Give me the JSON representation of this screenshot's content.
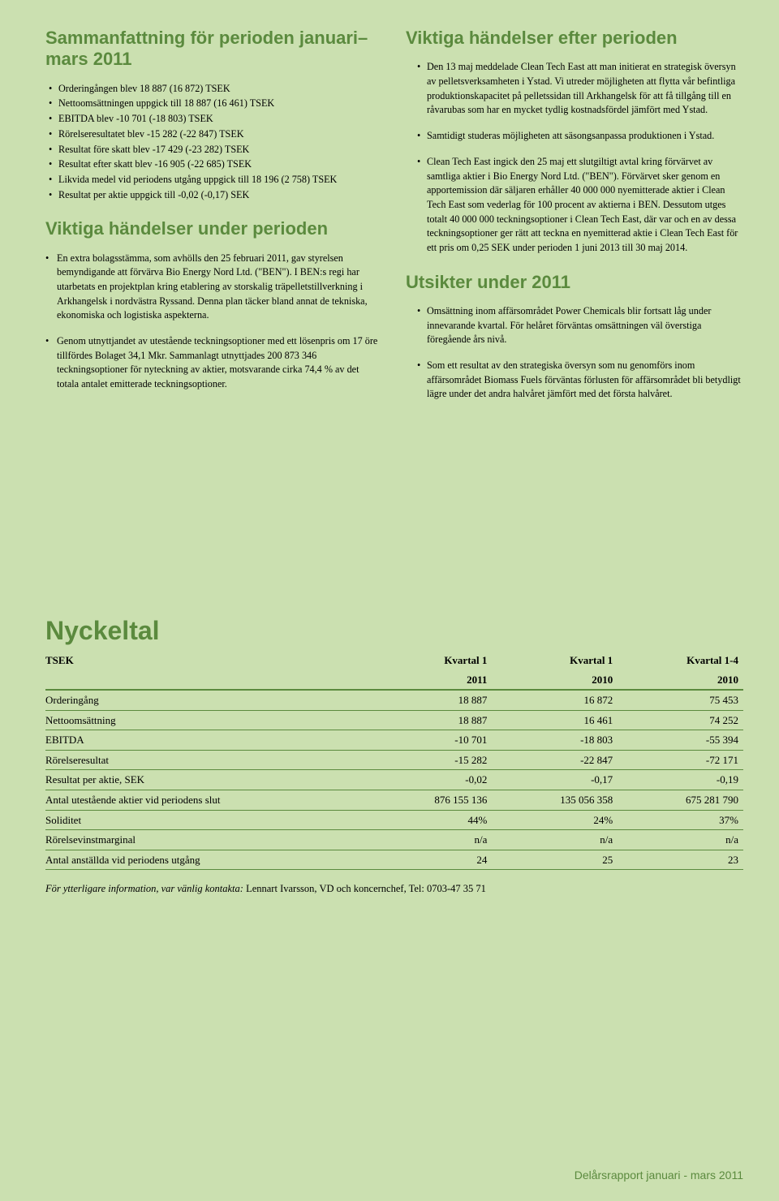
{
  "left": {
    "title1": "Sammanfattning för perioden januari–mars 2011",
    "summary": [
      "Orderingången blev 18 887 (16 872) TSEK",
      "Nettoomsättningen uppgick till 18 887 (16 461) TSEK",
      "EBITDA blev -10 701 (-18 803) TSEK",
      "Rörelseresultatet blev -15 282 (-22 847) TSEK",
      "Resultat före skatt blev -17 429 (-23 282) TSEK",
      "Resultat efter skatt blev -16 905 (-22 685) TSEK",
      "Likvida medel vid periodens utgång uppgick till 18 196 (2 758) TSEK",
      "Resultat per aktie uppgick till -0,02 (-0,17) SEK"
    ],
    "title2": "Viktiga händelser under perioden",
    "events": [
      "En extra bolagsstämma, som avhölls den 25 februari 2011, gav styrelsen bemyndigande att förvärva Bio Energy Nord Ltd. (\"BEN\"). I BEN:s regi har utarbetats en projektplan kring etablering av storskalig träpelletstillverkning i Arkhangelsk i nordvästra Ryssand. Denna plan täcker bland annat de tekniska, ekonomiska och logistiska aspekterna.",
      "Genom utnyttjandet av utestående teckningsoptioner med ett lösenpris om 17 öre tillfördes Bolaget 34,1 Mkr. Sammanlagt utnyttjades 200 873 346 teckningsoptioner för nyteckning av aktier, motsvarande cirka 74,4 % av det totala antalet emitterade teckningsoptioner."
    ]
  },
  "right": {
    "title1": "Viktiga händelser efter perioden",
    "after": [
      "Den 13 maj meddelade Clean Tech East att man initierat en strategisk översyn av pelletsverksamheten i Ystad. Vi utreder möjligheten att flytta vår befintliga produktionskapacitet på pelletssidan till Arkhangelsk för att få tillgång till en råvarubas som har en mycket tydlig kostnadsfördel jämfört med Ystad.",
      "Samtidigt studeras möjligheten att säsongsanpassa produktionen i Ystad.",
      "Clean Tech East ingick den 25 maj ett slutgiltigt avtal kring förvärvet av samtliga aktier i Bio Energy Nord Ltd. (\"BEN\"). Förvärvet sker genom en apportemission där säljaren erhåller 40 000 000 nyemitterade aktier i Clean Tech East som vederlag för 100 procent av aktierna i BEN. Dessutom utges totalt 40 000 000 teckningsoptioner i Clean Tech East, där var och en av dessa teckningsoptioner ger rätt att teckna en nyemitterad aktie i Clean Tech East för ett pris om 0,25 SEK under perioden 1 juni 2013 till 30 maj 2014."
    ],
    "title2": "Utsikter under 2011",
    "outlook": [
      "Omsättning inom affärsområdet Power Chemicals blir fortsatt låg under innevarande kvartal. För helåret förväntas omsättningen väl överstiga föregående års nivå.",
      "Som ett resultat av den strategiska översyn som nu genomförs inom affärsområdet Biomass Fuels förväntas förlusten för affärsområdet bli betydligt lägre under det andra halvåret jämfört med det första halvåret."
    ]
  },
  "nyckeltal": {
    "heading": "Nyckeltal",
    "tsek": "TSEK",
    "col_labels": [
      "Kvartal 1",
      "Kvartal 1",
      "Kvartal 1-4"
    ],
    "col_years": [
      "2011",
      "2010",
      "2010"
    ],
    "rows": [
      {
        "l": "Orderingång",
        "v": [
          "18 887",
          "16 872",
          "75 453"
        ]
      },
      {
        "l": "Nettoomsättning",
        "v": [
          "18 887",
          "16 461",
          "74 252"
        ]
      },
      {
        "l": "EBITDA",
        "v": [
          "-10 701",
          "-18 803",
          "-55 394"
        ]
      },
      {
        "l": "Rörelseresultat",
        "v": [
          "-15 282",
          "-22 847",
          "-72 171"
        ]
      },
      {
        "l": "Resultat per aktie, SEK",
        "v": [
          "-0,02",
          "-0,17",
          "-0,19"
        ]
      },
      {
        "l": "Antal utestående aktier vid periodens slut",
        "v": [
          "876 155 136",
          "135 056 358",
          "675 281 790"
        ]
      },
      {
        "l": "Soliditet",
        "v": [
          "44%",
          "24%",
          "37%"
        ]
      },
      {
        "l": "Rörelsevinstmarginal",
        "v": [
          "n/a",
          "n/a",
          "n/a"
        ]
      },
      {
        "l": "Antal anställda vid periodens utgång",
        "v": [
          "24",
          "25",
          "23"
        ]
      }
    ]
  },
  "footnote_em": "För ytterligare information, var vänlig kontakta:",
  "footnote_rest": " Lennart Ivarsson, VD och koncernchef, Tel:  0703-47 35 71",
  "footer": "Delårsrapport januari - mars 2011",
  "colors": {
    "bg": "#cbe0b0",
    "accent": "#5b8a3e",
    "text": "#000000"
  },
  "fonts": {
    "heading_family": "Arial",
    "body_family": "Georgia",
    "heading_size_pt": 16,
    "body_size_pt": 9,
    "nyckeltal_size_pt": 24
  }
}
